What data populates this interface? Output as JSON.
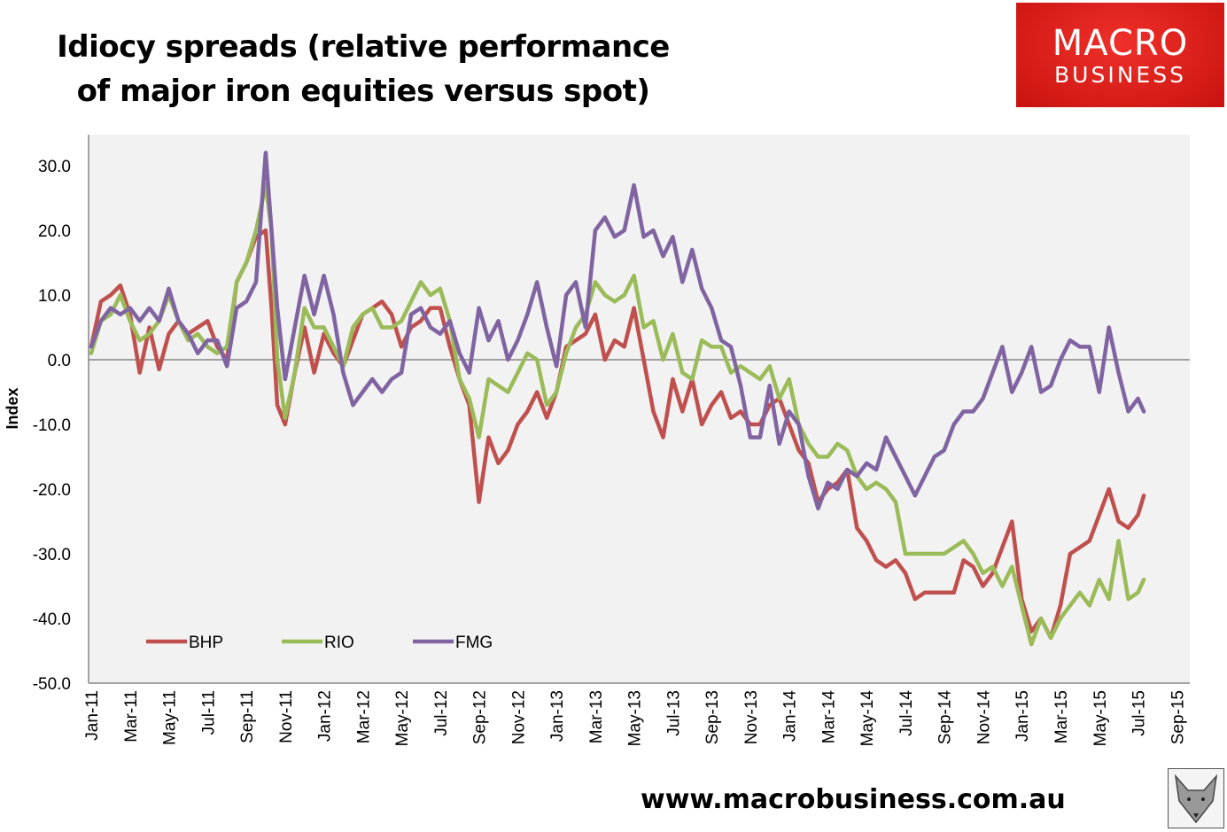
{
  "title_line1": "Idiocy spreads (relative performance",
  "title_line2": "of major iron equities versus spot)",
  "logo": {
    "line1": "MACRO",
    "line2": "BUSINESS"
  },
  "footer_url": "www.macrobusiness.com.au",
  "colors": {
    "BHP": "#c0504d",
    "RIO": "#9bbb59",
    "FMG": "#8064a2",
    "plot_bg": "#f2f2f2"
  },
  "chart_data": {
    "type": "line",
    "title": "Idiocy spreads (relative performance of major iron equities versus spot)",
    "xlabel": "",
    "ylabel": "Index",
    "ylim": [
      -50,
      35
    ],
    "yticks": [
      30,
      20,
      10,
      0,
      -10,
      -20,
      -30,
      -40,
      -50
    ],
    "ytick_labels": [
      "30.0",
      "20.0",
      "10.0",
      "0.0",
      "-10.0",
      "-20.0",
      "-30.0",
      "-40.0",
      "-50.0"
    ],
    "x_unit": "months since Jan-11",
    "xlim": [
      0,
      56
    ],
    "xtick_labels": [
      "Jan-11",
      "Mar-11",
      "May-11",
      "Jul-11",
      "Sep-11",
      "Nov-11",
      "Jan-12",
      "Mar-12",
      "May-12",
      "Jul-12",
      "Sep-12",
      "Nov-12",
      "Jan-13",
      "Mar-13",
      "May-13",
      "Jul-13",
      "Sep-13",
      "Nov-13",
      "Jan-14",
      "Mar-14",
      "May-14",
      "Jul-14",
      "Sep-14",
      "Nov-14",
      "Jan-15",
      "Mar-15",
      "May-15",
      "Jul-15",
      "Sep-15"
    ],
    "legend_position": "bottom-left",
    "x": [
      0,
      0.5,
      1,
      1.5,
      2,
      2.5,
      3,
      3.5,
      4,
      4.5,
      5,
      5.5,
      6,
      6.5,
      7,
      7.5,
      8,
      8.5,
      9,
      9.3,
      9.6,
      10,
      10.5,
      11,
      11.5,
      12,
      12.5,
      13,
      13.5,
      14,
      14.5,
      15,
      15.5,
      16,
      16.5,
      17,
      17.5,
      18,
      18.5,
      19,
      19.5,
      20,
      20.5,
      21,
      21.5,
      22,
      22.5,
      23,
      23.5,
      24,
      24.5,
      25,
      25.5,
      26,
      26.5,
      27,
      27.5,
      28,
      28.5,
      29,
      29.5,
      30,
      30.5,
      31,
      31.5,
      32,
      32.5,
      33,
      33.5,
      34,
      34.5,
      35,
      35.5,
      36,
      36.5,
      37,
      37.5,
      38,
      38.5,
      39,
      39.5,
      40,
      40.5,
      41,
      41.5,
      42,
      42.5,
      43,
      43.5,
      44,
      44.5,
      45,
      45.5,
      46,
      46.5,
      47,
      47.5,
      48,
      48.5,
      49,
      49.5,
      50,
      50.5,
      51,
      51.5,
      52,
      52.5,
      53,
      53.5,
      54,
      54.3
    ],
    "series": [
      {
        "name": "BHP",
        "values": [
          2,
          9,
          10,
          11.5,
          7,
          -2,
          5,
          -1.5,
          4,
          6,
          4,
          5,
          6,
          2,
          0,
          12,
          15,
          19,
          20,
          8,
          -7,
          -10,
          -2,
          5,
          -2,
          4,
          1,
          -1,
          3,
          7,
          8,
          9,
          7,
          2,
          5,
          6,
          8,
          8,
          2,
          -3,
          -7,
          -22,
          -12,
          -16,
          -14,
          -10,
          -8,
          -5,
          -9,
          -5,
          2,
          3,
          4,
          7,
          0,
          3,
          2,
          8,
          0,
          -8,
          -12,
          -3,
          -8,
          -3,
          -10,
          -7,
          -5,
          -9,
          -8,
          -10,
          -10,
          -7,
          -6,
          -10,
          -14,
          -16,
          -22,
          -20,
          -19,
          -17,
          -26,
          -28,
          -31,
          -32,
          -31,
          -33,
          -37,
          -36,
          -36,
          -36,
          -36,
          -31,
          -32,
          -35,
          -33,
          -29,
          -25,
          -37,
          -42,
          -40,
          -43,
          -38,
          -30,
          -29,
          -28,
          -24,
          -20,
          -25,
          -26,
          -24,
          -21
        ]
      },
      {
        "name": "RIO",
        "values": [
          1,
          6,
          7,
          10,
          6,
          3,
          4,
          6,
          10,
          6,
          3,
          4,
          2,
          1,
          2,
          12,
          15,
          20,
          27,
          20,
          0,
          -9,
          -2,
          8,
          5,
          5,
          2,
          -1,
          5,
          7,
          8,
          5,
          5,
          6,
          9,
          12,
          10,
          11,
          6,
          -3,
          -6,
          -12,
          -3,
          -4,
          -5,
          -2,
          1,
          0,
          -7,
          -5,
          1,
          5,
          7,
          12,
          10,
          9,
          10,
          13,
          5,
          6,
          0,
          4,
          -2,
          -3,
          3,
          2,
          2,
          -2,
          -1,
          -2,
          -3,
          -1,
          -6,
          -3,
          -10,
          -13,
          -15,
          -15,
          -13,
          -14,
          -18,
          -20,
          -19,
          -20,
          -22,
          -30,
          -30,
          -30,
          -30,
          -30,
          -29,
          -28,
          -30,
          -33,
          -32,
          -35,
          -32,
          -38,
          -44,
          -40,
          -43,
          -40,
          -38,
          -36,
          -38,
          -34,
          -37,
          -28,
          -37,
          -36,
          -34
        ]
      },
      {
        "name": "FMG",
        "values": [
          2,
          6,
          8,
          7,
          8,
          6,
          8,
          6,
          11,
          6,
          4,
          1,
          3,
          3,
          -1,
          8,
          9,
          12,
          32,
          20,
          8,
          -3,
          5,
          13,
          7,
          13,
          7,
          -2,
          -7,
          -5,
          -3,
          -5,
          -3,
          -2,
          7,
          8,
          5,
          4,
          6,
          1,
          -2,
          8,
          3,
          6,
          0,
          3,
          7,
          12,
          5,
          -1,
          10,
          12,
          5,
          20,
          22,
          19,
          20,
          27,
          19,
          20,
          16,
          19,
          12,
          17,
          11,
          8,
          3,
          2,
          -4,
          -12,
          -12,
          -4,
          -13,
          -8,
          -10,
          -18,
          -23,
          -19,
          -20,
          -17,
          -18,
          -16,
          -17,
          -12,
          -15,
          -18,
          -21,
          -18,
          -15,
          -14,
          -10,
          -8,
          -8,
          -6,
          -2,
          2,
          -5,
          -2,
          2,
          -5,
          -4,
          0,
          3,
          2,
          2,
          -5,
          5,
          -2,
          -8,
          -6,
          -8
        ]
      }
    ]
  }
}
